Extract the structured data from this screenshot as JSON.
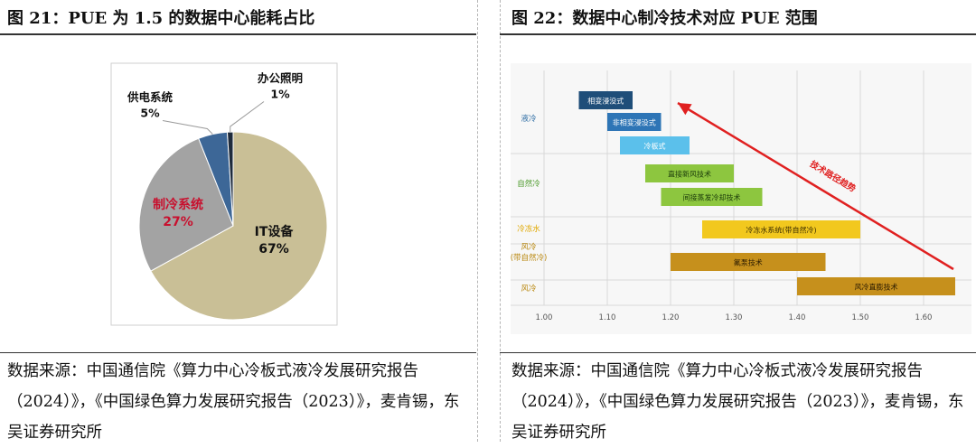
{
  "left": {
    "figure_title": "图 21：PUE 为 1.5 的数据中心能耗占比",
    "source": "数据来源：中国通信院《算力中心冷板式液冷发展研究报告（2024）》，《中国绿色算力发展研究报告（2023）》，麦肯锡，东吴证券研究所"
  },
  "right": {
    "figure_title": "图 22：数据中心制冷技术对应  PUE  范围",
    "source": "数据来源：中国通信院《算力中心冷板式液冷发展研究报告（2024）》，《中国绿色算力发展研究报告（2023）》，麦肯锡，东吴证券研究所"
  },
  "chart_data": [
    {
      "type": "pie",
      "title": "",
      "slices": [
        {
          "label": "IT设备",
          "value_label": "67%",
          "value": 67,
          "color": "#c9bf96"
        },
        {
          "label": "制冷系统",
          "value_label": "27%",
          "value": 27,
          "color": "#a3a3a3"
        },
        {
          "label": "供电系统",
          "value_label": "5%",
          "value": 5,
          "color": "#3d6797"
        },
        {
          "label": "办公照明",
          "value_label": "1%",
          "value": 1,
          "color": "#1e2b3c"
        }
      ],
      "highlight_label_color": "#c8102e"
    },
    {
      "type": "bar",
      "orientation": "horizontal-range",
      "title": "",
      "x_ticks": [
        "1.00",
        "1.10",
        "1.20",
        "1.30",
        "1.40",
        "1.50",
        "1.60"
      ],
      "xlim": [
        1.0,
        1.65
      ],
      "categories": [
        {
          "label": "液冷",
          "color": "#2e6da4"
        },
        {
          "label": "自然冷",
          "color": "#4c9a2a"
        },
        {
          "label": "冷冻水",
          "color": "#e0a800"
        },
        {
          "label": "风冷\n(带自然冷)",
          "color": "#b8860b"
        },
        {
          "label": "风冷",
          "color": "#b8860b"
        }
      ],
      "bars": [
        {
          "label": "相变浸没式",
          "start": 1.055,
          "end": 1.14,
          "category": "液冷",
          "color": "#1f4e79",
          "text_color": "#ffffff"
        },
        {
          "label": "非相变浸没式",
          "start": 1.1,
          "end": 1.185,
          "category": "液冷",
          "color": "#2e75b6",
          "text_color": "#ffffff"
        },
        {
          "label": "冷板式",
          "start": 1.12,
          "end": 1.23,
          "category": "液冷",
          "color": "#5bc0eb",
          "text_color": "#ffffff"
        },
        {
          "label": "直接新风技术",
          "start": 1.16,
          "end": 1.3,
          "category": "自然冷",
          "color": "#8dc63f",
          "text_color": "#1a3a0a"
        },
        {
          "label": "间接蒸发冷却技术",
          "start": 1.185,
          "end": 1.345,
          "category": "自然冷",
          "color": "#8dc63f",
          "text_color": "#1a3a0a"
        },
        {
          "label": "冷冻水系统(带自然冷)",
          "start": 1.25,
          "end": 1.5,
          "category": "冷冻水",
          "color": "#f2c81e",
          "text_color": "#3a2c00"
        },
        {
          "label": "氟泵技术",
          "start": 1.2,
          "end": 1.445,
          "category": "风冷\n(带自然冷)",
          "color": "#c6901c",
          "text_color": "#2a1a00"
        },
        {
          "label": "风冷直膨技术",
          "start": 1.4,
          "end": 1.65,
          "category": "风冷",
          "color": "#c6901c",
          "text_color": "#2a1a00"
        }
      ],
      "annotation": {
        "text": "技术路径趋势",
        "color": "#e02020"
      }
    }
  ]
}
